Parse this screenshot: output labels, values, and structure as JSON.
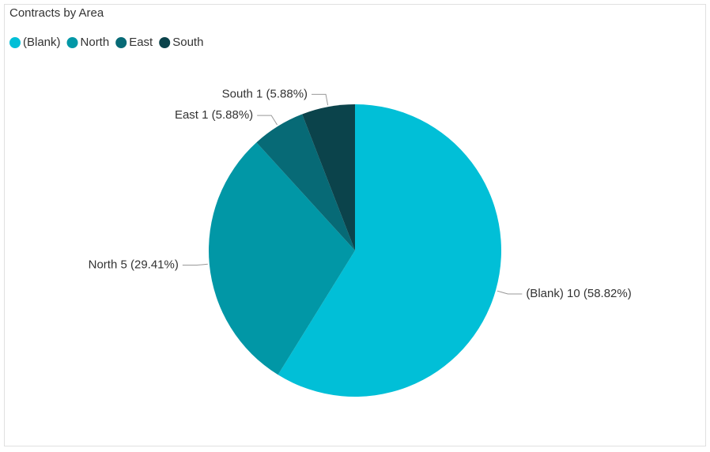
{
  "chart_data": {
    "type": "pie",
    "title": "Contracts by Area",
    "categories": [
      "(Blank)",
      "North",
      "East",
      "South"
    ],
    "values": [
      10,
      5,
      1,
      1
    ],
    "value_labels": [
      "10 (58.82%)",
      "5 (29.41%)",
      "1 (5.88%)",
      "1 (5.88%)"
    ],
    "colors": [
      "#01bfd7",
      "#0197a6",
      "#076a76",
      "#0b434b"
    ],
    "legend": "top-left"
  }
}
